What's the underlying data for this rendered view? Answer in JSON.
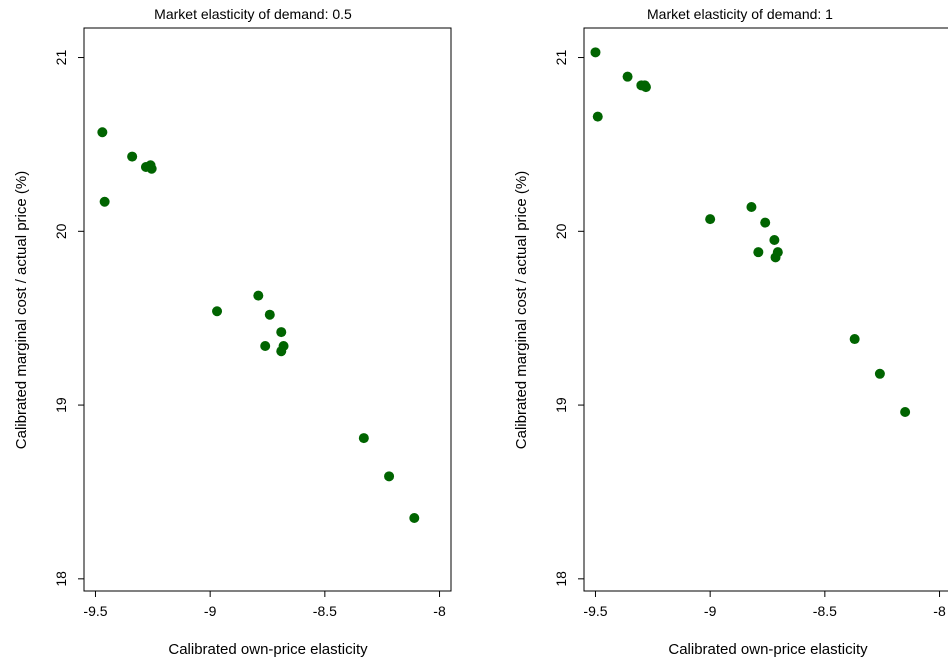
{
  "chart_data": [
    {
      "type": "scatter",
      "title": "Market elasticity of demand: 0.5",
      "xlabel": "Calibrated own-price elasticity",
      "ylabel": "Calibrated marginal cost / actual price (%)",
      "xlim": [
        -9.55,
        -7.95
      ],
      "ylim": [
        17.93,
        21.17
      ],
      "xticks": [
        -9.5,
        -9,
        -8.5,
        -8
      ],
      "xtick_labels": [
        "-9.5",
        "-9",
        "-8.5",
        "-8"
      ],
      "yticks": [
        18,
        19,
        20,
        21
      ],
      "ytick_labels": [
        "18",
        "19",
        "20",
        "21"
      ],
      "grid": false,
      "marker_color": "#006400",
      "points": [
        {
          "x": -9.47,
          "y": 20.57
        },
        {
          "x": -9.46,
          "y": 20.17
        },
        {
          "x": -9.34,
          "y": 20.43
        },
        {
          "x": -9.28,
          "y": 20.37
        },
        {
          "x": -9.26,
          "y": 20.38
        },
        {
          "x": -9.255,
          "y": 20.36
        },
        {
          "x": -8.97,
          "y": 19.54
        },
        {
          "x": -8.79,
          "y": 19.63
        },
        {
          "x": -8.74,
          "y": 19.52
        },
        {
          "x": -8.69,
          "y": 19.42
        },
        {
          "x": -8.76,
          "y": 19.34
        },
        {
          "x": -8.68,
          "y": 19.34
        },
        {
          "x": -8.69,
          "y": 19.31
        },
        {
          "x": -8.33,
          "y": 18.81
        },
        {
          "x": -8.22,
          "y": 18.59
        },
        {
          "x": -8.11,
          "y": 18.35
        }
      ]
    },
    {
      "type": "scatter",
      "title": "Market elasticity of demand: 1",
      "xlabel": "Calibrated own-price elasticity",
      "ylabel": "Calibrated marginal cost / actual price (%)",
      "xlim": [
        -9.55,
        -7.95
      ],
      "ylim": [
        17.93,
        21.17
      ],
      "xticks": [
        -9.5,
        -9,
        -8.5,
        -8
      ],
      "xtick_labels": [
        "-9.5",
        "-9",
        "-8.5",
        "-8"
      ],
      "yticks": [
        18,
        19,
        20,
        21
      ],
      "ytick_labels": [
        "18",
        "19",
        "20",
        "21"
      ],
      "grid": false,
      "marker_color": "#006400",
      "points": [
        {
          "x": -9.5,
          "y": 21.03
        },
        {
          "x": -9.49,
          "y": 20.66
        },
        {
          "x": -9.36,
          "y": 20.89
        },
        {
          "x": -9.3,
          "y": 20.84
        },
        {
          "x": -9.285,
          "y": 20.84
        },
        {
          "x": -9.28,
          "y": 20.83
        },
        {
          "x": -9.0,
          "y": 20.07
        },
        {
          "x": -8.82,
          "y": 20.14
        },
        {
          "x": -8.76,
          "y": 20.05
        },
        {
          "x": -8.72,
          "y": 19.95
        },
        {
          "x": -8.79,
          "y": 19.88
        },
        {
          "x": -8.705,
          "y": 19.88
        },
        {
          "x": -8.715,
          "y": 19.85
        },
        {
          "x": -8.37,
          "y": 19.38
        },
        {
          "x": -8.26,
          "y": 19.18
        },
        {
          "x": -8.15,
          "y": 18.96
        }
      ]
    }
  ]
}
